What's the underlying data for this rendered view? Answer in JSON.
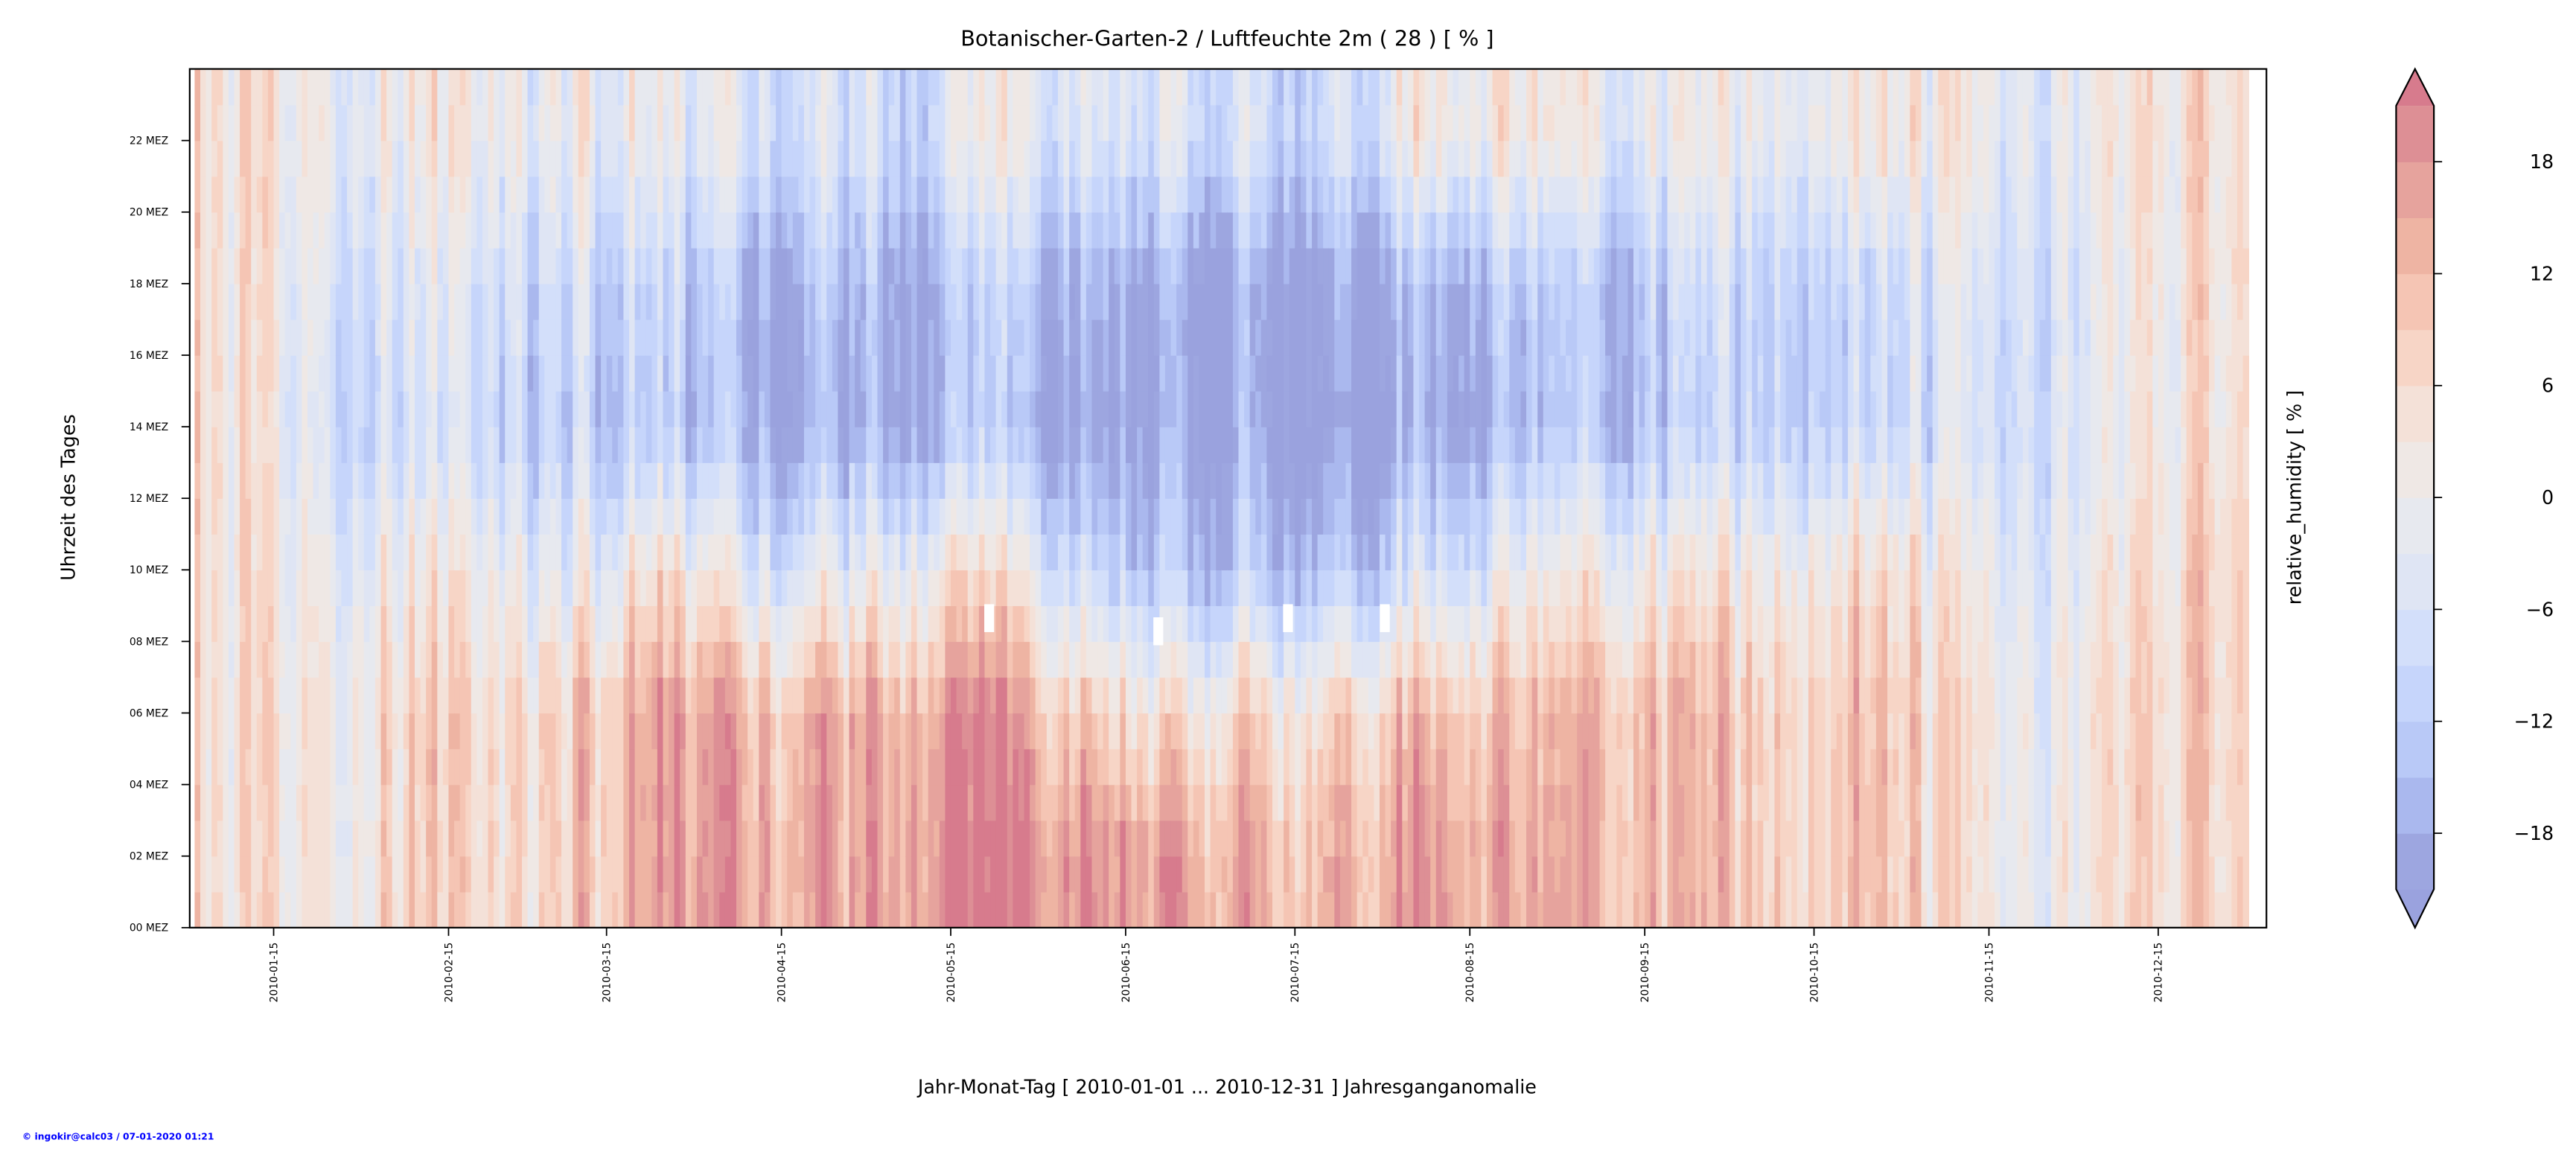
{
  "chart_data": {
    "type": "heatmap",
    "title": "Botanischer-Garten-2 / Luftfeuchte 2m ( 28 ) [ % ]",
    "xlabel": "Jahr-Monat-Tag [ 2010-01-01 ... 2010-12-31 ] Jahresganganomalie",
    "ylabel": "Uhrzeit des Tages",
    "colorbar_label": "relative_humidity [ % ]",
    "x_range_days": [
      0,
      365
    ],
    "y_range_hours": [
      0,
      24
    ],
    "x_ticks": [
      {
        "label": "2010-01-15",
        "day": 14
      },
      {
        "label": "2010-02-15",
        "day": 45
      },
      {
        "label": "2010-03-15",
        "day": 73
      },
      {
        "label": "2010-04-15",
        "day": 104
      },
      {
        "label": "2010-05-15",
        "day": 134
      },
      {
        "label": "2010-06-15",
        "day": 165
      },
      {
        "label": "2010-07-15",
        "day": 195
      },
      {
        "label": "2010-08-15",
        "day": 226
      },
      {
        "label": "2010-09-15",
        "day": 257
      },
      {
        "label": "2010-10-15",
        "day": 287
      },
      {
        "label": "2010-11-15",
        "day": 318
      },
      {
        "label": "2010-12-15",
        "day": 348
      }
    ],
    "y_ticks": [
      {
        "label": "00 MEZ",
        "hour": 0
      },
      {
        "label": "02 MEZ",
        "hour": 2
      },
      {
        "label": "04 MEZ",
        "hour": 4
      },
      {
        "label": "06 MEZ",
        "hour": 6
      },
      {
        "label": "08 MEZ",
        "hour": 8
      },
      {
        "label": "10 MEZ",
        "hour": 10
      },
      {
        "label": "12 MEZ",
        "hour": 12
      },
      {
        "label": "14 MEZ",
        "hour": 14
      },
      {
        "label": "16 MEZ",
        "hour": 16
      },
      {
        "label": "18 MEZ",
        "hour": 18
      },
      {
        "label": "20 MEZ",
        "hour": 20
      },
      {
        "label": "22 MEZ",
        "hour": 22
      }
    ],
    "colorbar_ticks": [
      {
        "label": "18",
        "value": 18
      },
      {
        "label": "12",
        "value": 12
      },
      {
        "label": "6",
        "value": 6
      },
      {
        "label": "0",
        "value": 0
      },
      {
        "label": "−6",
        "value": -6
      },
      {
        "label": "−12",
        "value": -12
      },
      {
        "label": "−18",
        "value": -18
      }
    ],
    "levels": [
      -21,
      -18,
      -15,
      -12,
      -9,
      -6,
      -3,
      0,
      3,
      6,
      9,
      12,
      15,
      18,
      21
    ],
    "level_colors": [
      "#9da6e0",
      "#aab8ee",
      "#b9c9f7",
      "#c6d5fb",
      "#d3dffa",
      "#dfe5f4",
      "#e7e9ef",
      "#efe8e5",
      "#f4e1d8",
      "#f7d5c6",
      "#f5c5b4",
      "#eeb4a3",
      "#e6a39d",
      "#dd8f95"
    ],
    "under_color": "#9aa2de",
    "over_color": "#d77b8d",
    "approx_grid": {
      "note_columns": "half-month periods Jan-a ... Dec-b",
      "hour_band_centers": [
        2,
        6,
        10,
        14,
        18,
        22
      ],
      "values": [
        [
          3,
          0,
          9,
          6,
          9,
          15,
          15,
          15,
          18,
          21,
          18,
          15,
          12,
          15,
          18,
          15,
          12,
          12,
          6,
          9,
          6,
          0,
          3,
          9
        ],
        [
          3,
          0,
          9,
          6,
          9,
          15,
          12,
          15,
          15,
          18,
          6,
          3,
          6,
          9,
          12,
          12,
          12,
          12,
          6,
          9,
          6,
          0,
          3,
          9
        ],
        [
          3,
          -3,
          3,
          0,
          -3,
          3,
          -6,
          -3,
          0,
          3,
          -12,
          -15,
          -15,
          -12,
          -6,
          0,
          0,
          3,
          0,
          3,
          3,
          -3,
          0,
          9
        ],
        [
          3,
          -9,
          -6,
          -9,
          -12,
          -15,
          -18,
          -18,
          -18,
          -15,
          -21,
          -21,
          -21,
          -21,
          -18,
          -15,
          -15,
          -12,
          -12,
          -12,
          -6,
          -6,
          -3,
          6
        ],
        [
          3,
          -6,
          -3,
          -6,
          -9,
          -12,
          -18,
          -15,
          -18,
          -12,
          -18,
          -21,
          -21,
          -18,
          -15,
          -12,
          -15,
          -9,
          -12,
          -12,
          -3,
          -6,
          -3,
          6
        ],
        [
          3,
          -3,
          3,
          0,
          0,
          -3,
          -6,
          -6,
          -9,
          0,
          -6,
          -6,
          -9,
          -6,
          3,
          3,
          -3,
          0,
          -3,
          0,
          3,
          -3,
          0,
          6
        ]
      ]
    }
  },
  "footer": "© ingokir@calc03 / 07-01-2020 01:21"
}
